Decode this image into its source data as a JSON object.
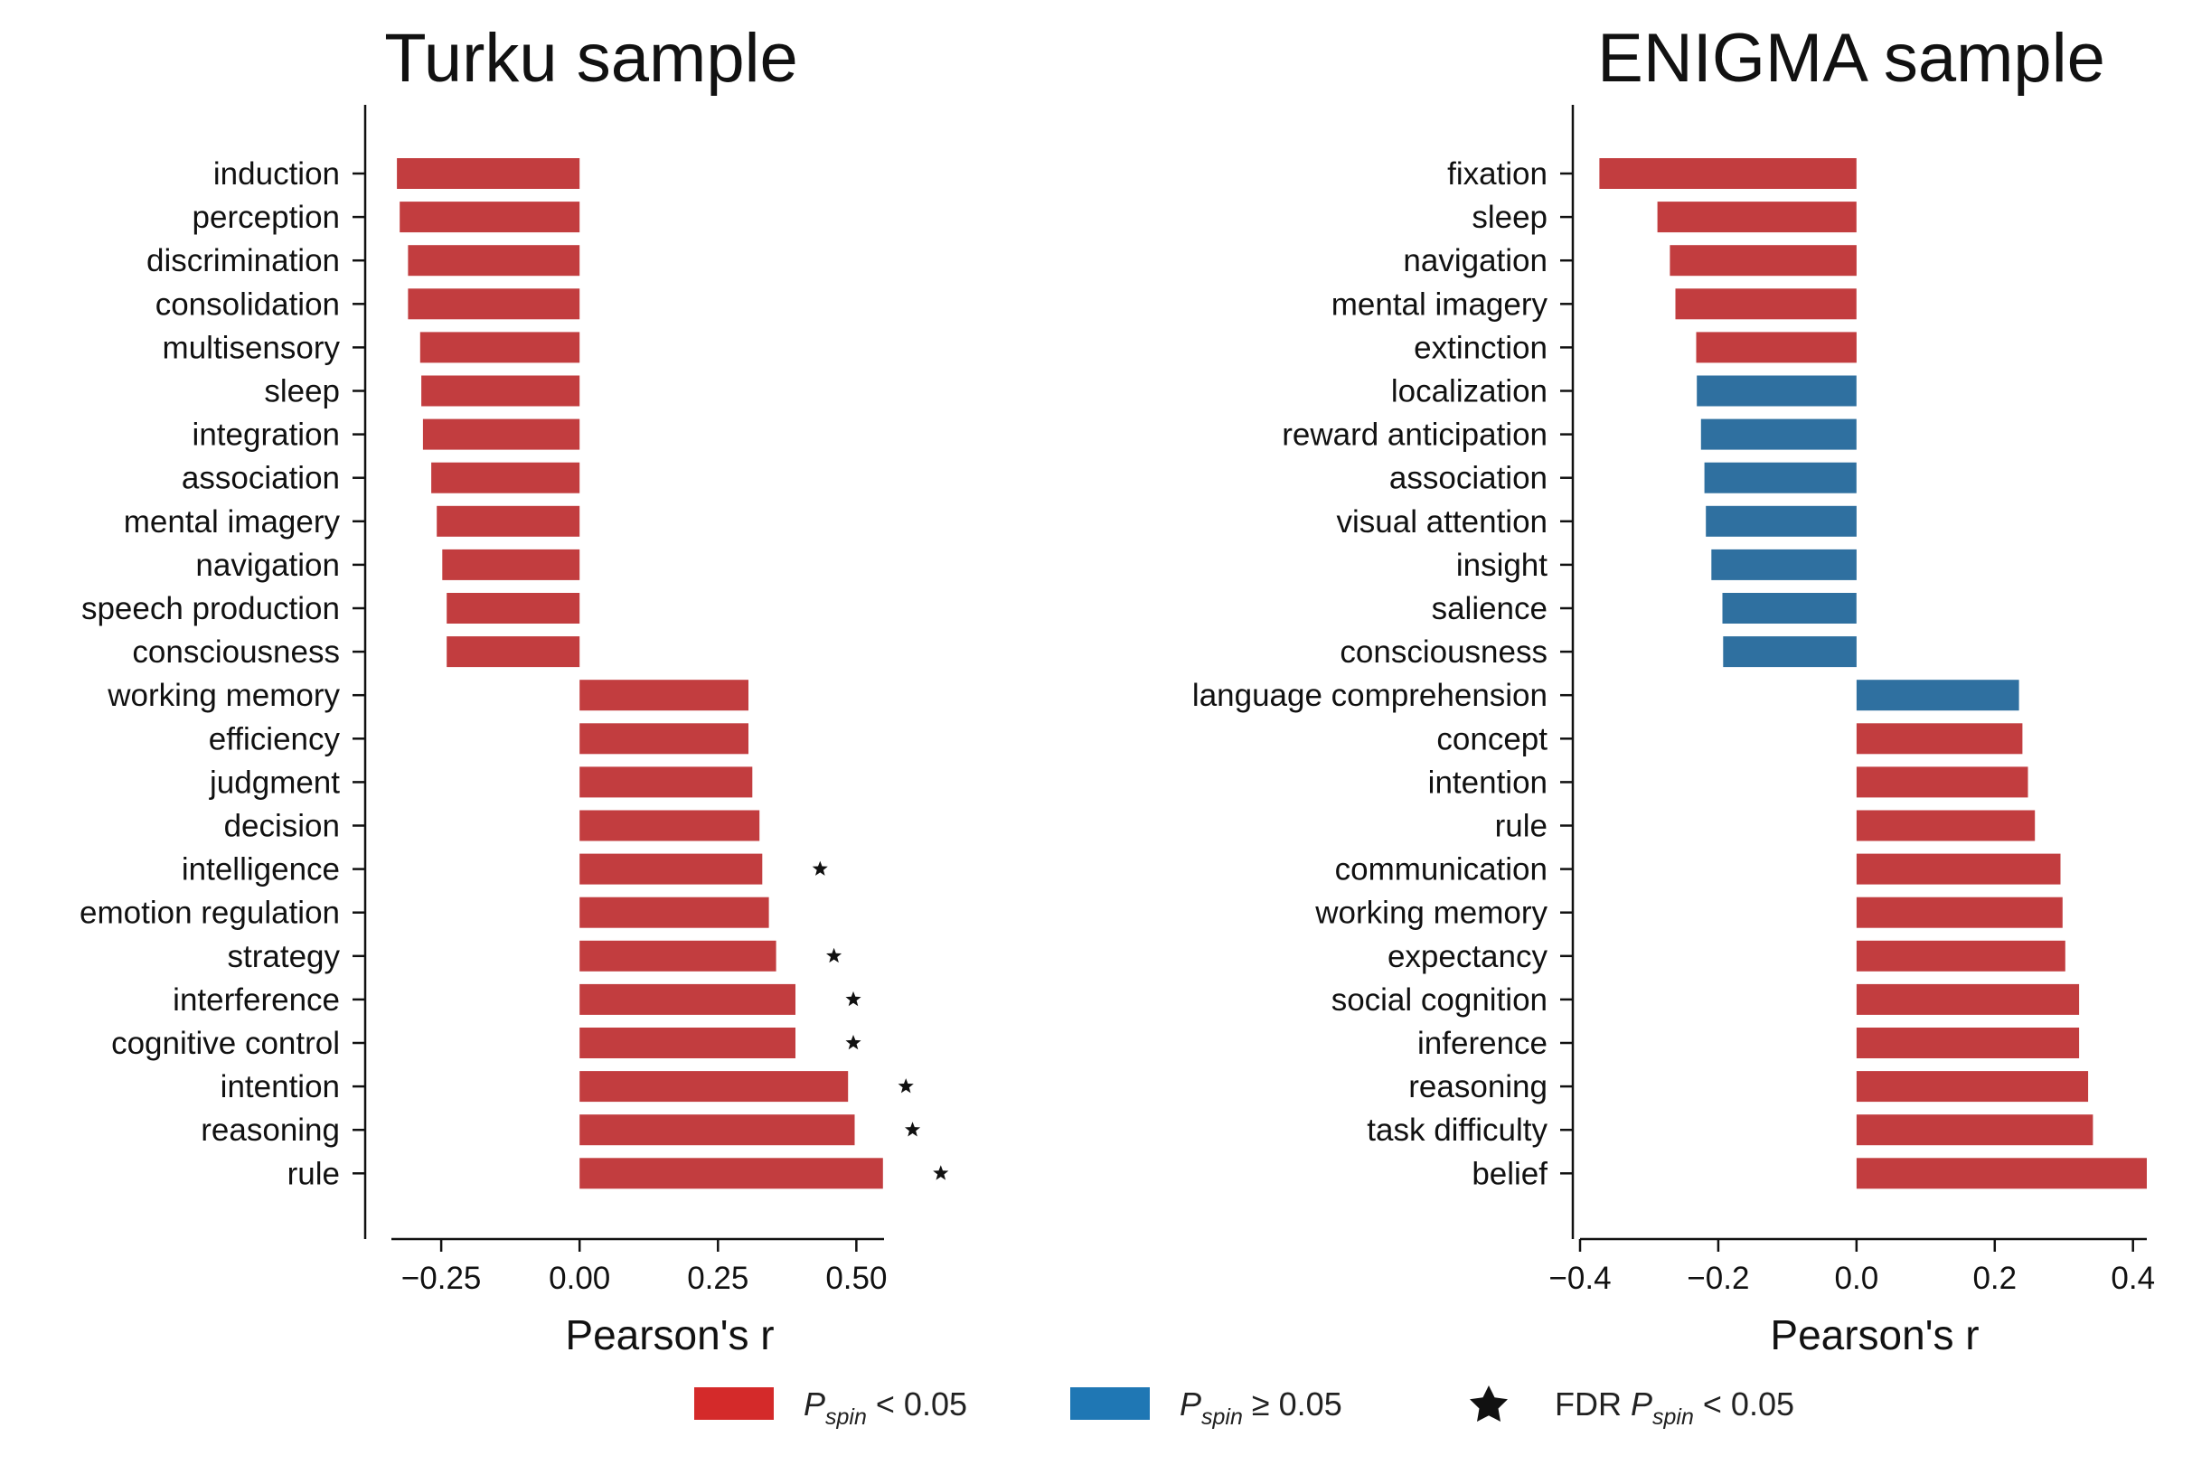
{
  "chart_data": [
    {
      "type": "bar",
      "orientation": "horizontal",
      "title": "Turku sample",
      "xlabel": "Pearson's r",
      "xlim": [
        -0.34,
        0.55
      ],
      "xticks": [
        -0.25,
        0.0,
        0.25,
        0.5
      ],
      "xtick_labels": [
        "−0.25",
        "0.00",
        "0.25",
        "0.50"
      ],
      "categories": [
        "induction",
        "perception",
        "discrimination",
        "consolidation",
        "multisensory",
        "sleep",
        "integration",
        "association",
        "mental imagery",
        "navigation",
        "speech production",
        "consciousness",
        "working memory",
        "efficiency",
        "judgment",
        "decision",
        "intelligence",
        "emotion regulation",
        "strategy",
        "interference",
        "cognitive control",
        "intention",
        "reasoning",
        "rule"
      ],
      "values": [
        -0.33,
        -0.325,
        -0.31,
        -0.31,
        -0.288,
        -0.286,
        -0.283,
        -0.268,
        -0.258,
        -0.248,
        -0.24,
        -0.24,
        0.305,
        0.305,
        0.312,
        0.325,
        0.33,
        0.342,
        0.355,
        0.39,
        0.39,
        0.485,
        0.497,
        0.548
      ],
      "significant": [
        true,
        true,
        true,
        true,
        true,
        true,
        true,
        true,
        true,
        true,
        true,
        true,
        true,
        true,
        true,
        true,
        true,
        true,
        true,
        true,
        true,
        true,
        true,
        true
      ],
      "fdr_significant": [
        false,
        false,
        false,
        false,
        false,
        false,
        false,
        false,
        false,
        false,
        false,
        false,
        false,
        false,
        false,
        false,
        true,
        false,
        true,
        true,
        true,
        true,
        true,
        true
      ],
      "grid": false
    },
    {
      "type": "bar",
      "orientation": "horizontal",
      "title": "ENIGMA sample",
      "xlabel": "Pearson's r",
      "xlim": [
        -0.4,
        0.42
      ],
      "xticks": [
        -0.4,
        -0.2,
        0.0,
        0.2,
        0.4
      ],
      "xtick_labels": [
        "−0.4",
        "−0.2",
        "0.0",
        "0.2",
        "0.4"
      ],
      "categories": [
        "fixation",
        "sleep",
        "navigation",
        "mental imagery",
        "extinction",
        "localization",
        "reward anticipation",
        "association",
        "visual attention",
        "insight",
        "salience",
        "consciousness",
        "language comprehension",
        "concept",
        "intention",
        "rule",
        "communication",
        "working memory",
        "expectancy",
        "social cognition",
        "inference",
        "reasoning",
        "task difficulty",
        "belief"
      ],
      "values": [
        -0.372,
        -0.288,
        -0.27,
        -0.262,
        -0.232,
        -0.231,
        -0.225,
        -0.22,
        -0.218,
        -0.21,
        -0.194,
        -0.193,
        0.235,
        0.24,
        0.248,
        0.258,
        0.295,
        0.298,
        0.302,
        0.322,
        0.322,
        0.335,
        0.342,
        0.42
      ],
      "significant": [
        true,
        true,
        true,
        true,
        true,
        false,
        false,
        false,
        false,
        false,
        false,
        false,
        false,
        true,
        true,
        true,
        true,
        true,
        true,
        true,
        true,
        true,
        true,
        true
      ],
      "fdr_significant": [
        false,
        false,
        false,
        false,
        false,
        false,
        false,
        false,
        false,
        false,
        false,
        false,
        false,
        false,
        false,
        false,
        false,
        false,
        false,
        false,
        false,
        false,
        false,
        false
      ],
      "grid": false
    }
  ],
  "colors": {
    "significant": "#c23d3f",
    "not_significant": "#2f70a0",
    "legend_significant": "#d42a2a",
    "legend_not_significant": "#1f77b4",
    "star": "#111111",
    "axis": "#111111"
  },
  "legend": {
    "placement": "bottom-center",
    "items": [
      {
        "marker": "red-patch",
        "label_prefix": "P",
        "label_sub": "spin",
        "label_suffix": " < 0.05"
      },
      {
        "marker": "blue-patch",
        "label_prefix": "P",
        "label_sub": "spin",
        "label_suffix": " ≥ 0.05"
      },
      {
        "marker": "star-icon",
        "label_lead": "FDR ",
        "label_prefix": "P",
        "label_sub": "spin",
        "label_suffix": " < 0.05"
      }
    ]
  }
}
